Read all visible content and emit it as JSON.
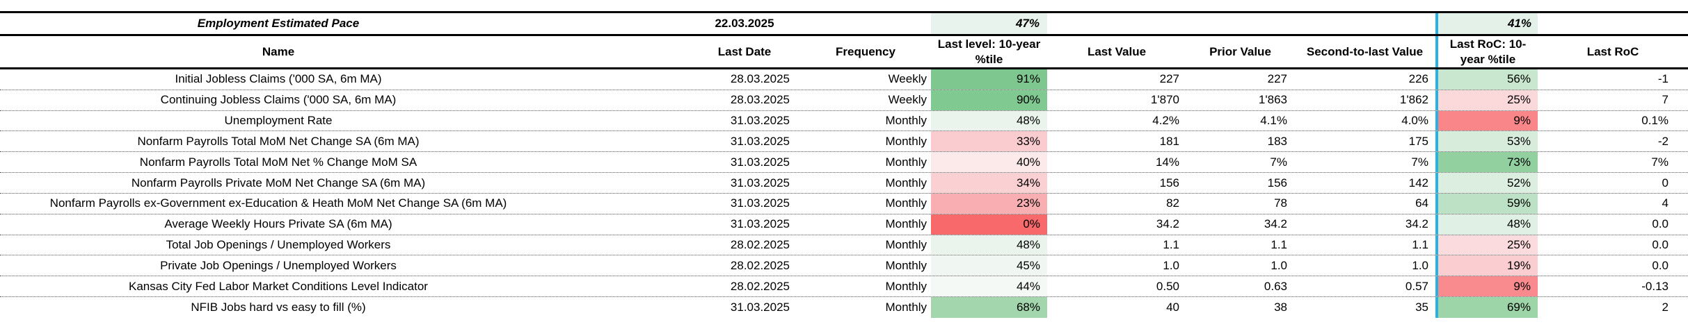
{
  "title_row": {
    "title": "Employment Estimated Pace",
    "date": "22.03.2025",
    "level_ptile": "47%",
    "roc_ptile": "41%"
  },
  "header": {
    "name": "Name",
    "last_date": "Last Date",
    "frequency": "Frequency",
    "level_ptile": "Last level: 10-year %tile",
    "last_value": "Last Value",
    "prior_value": "Prior Value",
    "second_value": "Second-to-last Value",
    "roc_ptile": "Last RoC: 10-year %tile",
    "last_roc": "Last RoC"
  },
  "rows": [
    {
      "name": "Initial Jobless Claims ('000 SA, 6m MA)",
      "last_date": "28.03.2025",
      "frequency": "Weekly",
      "level_ptile": "91%",
      "level_bg": "#7ec88f",
      "last_value": "227",
      "prior_value": "227",
      "second_value": "226",
      "roc_ptile": "56%",
      "roc_bg": "#c9e7cf",
      "last_roc": "-1"
    },
    {
      "name": "Continuing Jobless Claims ('000 SA, 6m MA)",
      "last_date": "28.03.2025",
      "frequency": "Weekly",
      "level_ptile": "90%",
      "level_bg": "#80c991",
      "last_value": "1'870",
      "prior_value": "1'863",
      "second_value": "1'862",
      "roc_ptile": "25%",
      "roc_bg": "#fbd9db",
      "last_roc": "7"
    },
    {
      "name": "Unemployment Rate",
      "last_date": "31.03.2025",
      "frequency": "Monthly",
      "level_ptile": "48%",
      "level_bg": "#eaf4ed",
      "last_value": "4.2%",
      "prior_value": "4.1%",
      "second_value": "4.0%",
      "roc_ptile": "9%",
      "roc_bg": "#f9878a",
      "last_roc": "0.1%"
    },
    {
      "name": "Nonfarm Payrolls Total MoM Net Change SA (6m MA)",
      "last_date": "31.03.2025",
      "frequency": "Monthly",
      "level_ptile": "33%",
      "level_bg": "#fbcccf",
      "last_value": "181",
      "prior_value": "183",
      "second_value": "175",
      "roc_ptile": "53%",
      "roc_bg": "#d8ecdc",
      "last_roc": "-2"
    },
    {
      "name": "Nonfarm Payrolls Total MoM Net % Change MoM SA",
      "last_date": "31.03.2025",
      "frequency": "Monthly",
      "level_ptile": "40%",
      "level_bg": "#fce9ea",
      "last_value": "14%",
      "prior_value": "7%",
      "second_value": "7%",
      "roc_ptile": "73%",
      "roc_bg": "#93d0a0",
      "last_roc": "7%"
    },
    {
      "name": "Nonfarm Payrolls Private MoM Net Change SA  (6m MA)",
      "last_date": "31.03.2025",
      "frequency": "Monthly",
      "level_ptile": "34%",
      "level_bg": "#fbd0d2",
      "last_value": "156",
      "prior_value": "156",
      "second_value": "142",
      "roc_ptile": "52%",
      "roc_bg": "#dceee0",
      "last_roc": "0"
    },
    {
      "name": "Nonfarm Payrolls ex-Government ex-Education & Heath MoM Net Change SA  (6m MA)",
      "last_date": "31.03.2025",
      "frequency": "Monthly",
      "level_ptile": "23%",
      "level_bg": "#f9afb2",
      "last_value": "82",
      "prior_value": "78",
      "second_value": "64",
      "roc_ptile": "59%",
      "roc_bg": "#bce1c4",
      "last_roc": "4"
    },
    {
      "name": "Average Weekly Hours Private SA (6m MA)",
      "last_date": "31.03.2025",
      "frequency": "Monthly",
      "level_ptile": "0%",
      "level_bg": "#f8696b",
      "last_value": "34.2",
      "prior_value": "34.2",
      "second_value": "34.2",
      "roc_ptile": "48%",
      "roc_bg": "#e0f0e4",
      "last_roc": "0.0"
    },
    {
      "name": "Total Job Openings / Unemployed Workers",
      "last_date": "28.02.2025",
      "frequency": "Monthly",
      "level_ptile": "48%",
      "level_bg": "#eaf4ed",
      "last_value": "1.1",
      "prior_value": "1.1",
      "second_value": "1.1",
      "roc_ptile": "25%",
      "roc_bg": "#fbdbdd",
      "last_roc": "0.0"
    },
    {
      "name": "Private Job Openings / Unemployed Workers",
      "last_date": "28.02.2025",
      "frequency": "Monthly",
      "level_ptile": "45%",
      "level_bg": "#f0f7f2",
      "last_value": "1.0",
      "prior_value": "1.0",
      "second_value": "1.0",
      "roc_ptile": "19%",
      "roc_bg": "#facdd0",
      "last_roc": "0.0"
    },
    {
      "name": "Kansas City Fed Labor Market Conditions Level Indicator",
      "last_date": "28.02.2025",
      "frequency": "Monthly",
      "level_ptile": "44%",
      "level_bg": "#f4f9f6",
      "last_value": "0.50",
      "prior_value": "0.63",
      "second_value": "0.57",
      "roc_ptile": "9%",
      "roc_bg": "#f98b8e",
      "last_roc": "-0.13"
    },
    {
      "name": "NFIB Jobs hard vs easy to fill (%)",
      "last_date": "31.03.2025",
      "frequency": "Monthly",
      "level_ptile": "68%",
      "level_bg": "#a3d6ad",
      "last_value": "40",
      "prior_value": "38",
      "second_value": "35",
      "roc_ptile": "69%",
      "roc_bg": "#9dd4a8",
      "last_roc": "2"
    }
  ],
  "colors": {
    "accent_cyan": "#27b2e5",
    "section_border": "#000000",
    "row_divider": "#555555",
    "title_level_bg": "#e9f3ed",
    "title_roc_bg": "#e3f1e9"
  }
}
